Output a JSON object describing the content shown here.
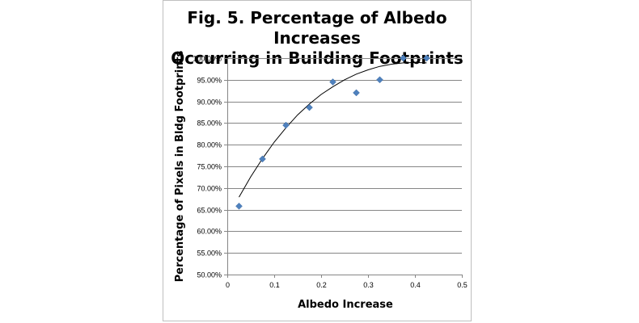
{
  "chart_data": {
    "type": "scatter",
    "title_line1": "Fig. 5. Percentage of Albedo Increases",
    "title_line2": "Occurring in Building Footprints",
    "xlabel": "Albedo Increase",
    "ylabel": "Percentage of Pixels in Bldg Footprints",
    "xlim": [
      0,
      0.5
    ],
    "ylim": [
      0.5,
      1.0
    ],
    "x_ticks": [
      0,
      0.1,
      0.2,
      0.3,
      0.4,
      0.5
    ],
    "x_tick_labels": [
      "0",
      "0.1",
      "0.2",
      "0.3",
      "0.4",
      "0.5"
    ],
    "y_ticks": [
      0.5,
      0.55,
      0.6,
      0.65,
      0.7,
      0.75,
      0.8,
      0.85,
      0.9,
      0.95,
      1.0
    ],
    "y_tick_labels": [
      "50.00%",
      "55.00%",
      "60.00%",
      "65.00%",
      "70.00%",
      "75.00%",
      "80.00%",
      "85.00%",
      "90.00%",
      "95.00%",
      "100.00%"
    ],
    "grid": "horizontal",
    "marker_color": "#4f81bd",
    "trendline_color": "#000000",
    "points": [
      {
        "x": 0.025,
        "y": 0.658
      },
      {
        "x": 0.075,
        "y": 0.767
      },
      {
        "x": 0.125,
        "y": 0.845
      },
      {
        "x": 0.175,
        "y": 0.886
      },
      {
        "x": 0.225,
        "y": 0.945
      },
      {
        "x": 0.275,
        "y": 0.92
      },
      {
        "x": 0.325,
        "y": 0.95
      },
      {
        "x": 0.375,
        "y": 1.0
      },
      {
        "x": 0.425,
        "y": 1.0
      }
    ],
    "trendline": {
      "type": "polynomial",
      "x": [
        0.025,
        0.05,
        0.075,
        0.1,
        0.125,
        0.15,
        0.175,
        0.2,
        0.225,
        0.25,
        0.275,
        0.3,
        0.325,
        0.35,
        0.375,
        0.4,
        0.425
      ],
      "y": [
        0.679,
        0.726,
        0.768,
        0.806,
        0.839,
        0.869,
        0.894,
        0.916,
        0.934,
        0.95,
        0.963,
        0.973,
        0.981,
        0.986,
        0.989,
        0.99,
        0.989
      ]
    }
  }
}
